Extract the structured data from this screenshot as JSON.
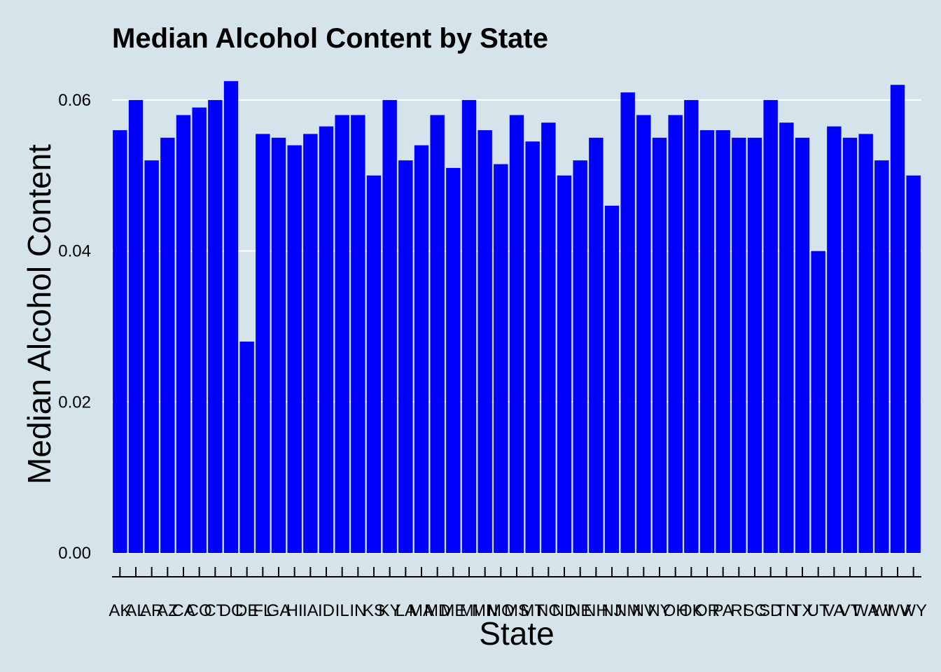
{
  "chart_data": {
    "type": "bar",
    "title": "Median Alcohol Content by State",
    "xlabel": "State",
    "ylabel": "Median Alcohol Content",
    "ylim": [
      0,
      0.0636
    ],
    "yticks": [
      "0.00",
      "0.02",
      "0.04",
      "0.06"
    ],
    "ytick_values": [
      0,
      0.02,
      0.04,
      0.06
    ],
    "grid": true,
    "legend": "none",
    "bar_color": "#0000ff",
    "background_color": "#d5e4eb",
    "grid_color": "#ffffff",
    "categories": [
      "AK",
      "AL",
      "AR",
      "AZ",
      "CA",
      "CO",
      "CT",
      "DC",
      "DE",
      "FL",
      "GA",
      "HI",
      "IA",
      "ID",
      "IL",
      "IN",
      "KS",
      "KY",
      "LA",
      "MA",
      "MD",
      "ME",
      "MI",
      "MN",
      "MO",
      "MS",
      "MT",
      "NC",
      "ND",
      "NE",
      "NH",
      "NJ",
      "NM",
      "NV",
      "NY",
      "OH",
      "OK",
      "OR",
      "PA",
      "RI",
      "SC",
      "SD",
      "TN",
      "TX",
      "UT",
      "VA",
      "VT",
      "WA",
      "WI",
      "WV",
      "WY"
    ],
    "values": [
      0.056,
      0.06,
      0.052,
      0.055,
      0.058,
      0.059,
      0.06,
      0.0625,
      0.028,
      0.0555,
      0.055,
      0.054,
      0.0555,
      0.0565,
      0.058,
      0.058,
      0.05,
      0.06,
      0.052,
      0.054,
      0.058,
      0.051,
      0.06,
      0.056,
      0.0515,
      0.058,
      0.0545,
      0.057,
      0.05,
      0.052,
      0.055,
      0.046,
      0.061,
      0.058,
      0.055,
      0.058,
      0.06,
      0.056,
      0.056,
      0.055,
      0.055,
      0.06,
      0.057,
      0.055,
      0.04,
      0.0565,
      0.055,
      0.0555,
      0.052,
      0.062,
      0.05
    ]
  }
}
